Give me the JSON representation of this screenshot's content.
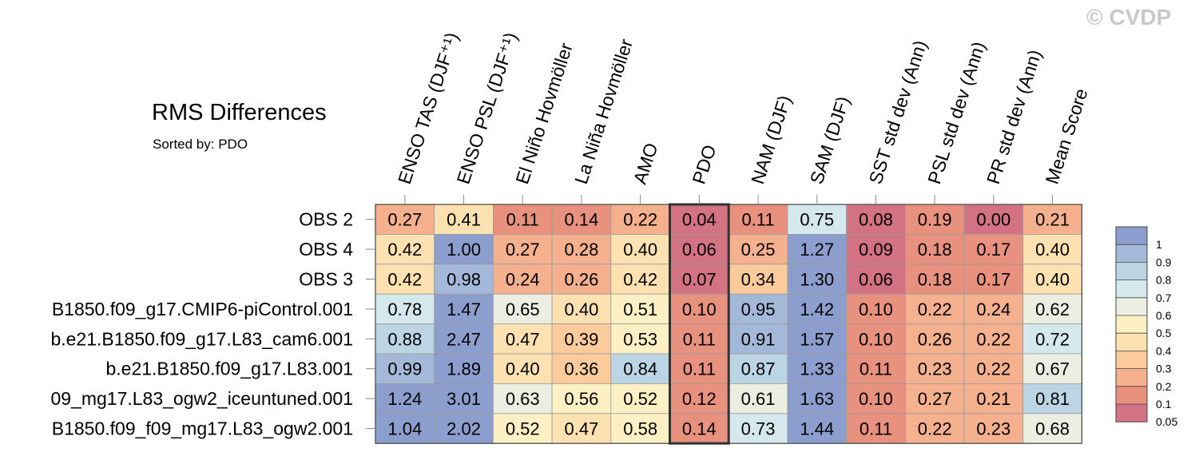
{
  "watermark": "© CVDP",
  "chart_data": {
    "type": "heatmap",
    "title": "RMS Differences",
    "subtitle": "Sorted by: PDO",
    "columns": [
      "ENSO TAS (DJF⁺¹)",
      "ENSO PSL (DJF⁺¹)",
      "El Niño Hovmöller",
      "La Niña Hovmöller",
      "AMO",
      "PDO",
      "NAM (DJF)",
      "SAM (DJF)",
      "SST std dev (Ann)",
      "PSL std dev (Ann)",
      "PR std dev (Ann)",
      "Mean Score"
    ],
    "rows": [
      "OBS 2",
      "OBS 4",
      "OBS 3",
      "B1850.f09_g17.CMIP6-piControl.001",
      "b.e21.B1850.f09_g17.L83_cam6.001",
      "b.e21.B1850.f09_g17.L83.001",
      "09_mg17.L83_ogw2_iceuntuned.001",
      "B1850.f09_f09_mg17.L83_ogw2.001"
    ],
    "values": [
      [
        0.27,
        0.41,
        0.11,
        0.14,
        0.22,
        0.04,
        0.11,
        0.75,
        0.08,
        0.19,
        0.0,
        0.21
      ],
      [
        0.42,
        1.0,
        0.27,
        0.28,
        0.4,
        0.06,
        0.25,
        1.27,
        0.09,
        0.18,
        0.17,
        0.4
      ],
      [
        0.42,
        0.98,
        0.24,
        0.26,
        0.42,
        0.07,
        0.34,
        1.3,
        0.06,
        0.18,
        0.17,
        0.4
      ],
      [
        0.78,
        1.47,
        0.65,
        0.4,
        0.51,
        0.1,
        0.95,
        1.42,
        0.1,
        0.22,
        0.24,
        0.62
      ],
      [
        0.88,
        2.47,
        0.47,
        0.39,
        0.53,
        0.11,
        0.91,
        1.57,
        0.1,
        0.26,
        0.22,
        0.72
      ],
      [
        0.99,
        1.89,
        0.4,
        0.36,
        0.84,
        0.11,
        0.87,
        1.33,
        0.11,
        0.23,
        0.22,
        0.67
      ],
      [
        1.24,
        3.01,
        0.63,
        0.56,
        0.52,
        0.12,
        0.61,
        1.63,
        0.1,
        0.27,
        0.21,
        0.81
      ],
      [
        1.04,
        2.02,
        0.52,
        0.47,
        0.58,
        0.14,
        0.73,
        1.44,
        0.11,
        0.22,
        0.23,
        0.68
      ]
    ],
    "highlight_column": "PDO",
    "colorbar": {
      "levels": [
        1,
        0.9,
        0.8,
        0.7,
        0.6,
        0.5,
        0.4,
        0.3,
        0.2,
        0.1,
        0.05
      ],
      "labels": [
        "1",
        "0.9",
        "0.8",
        "0.7",
        "0.6",
        "0.5",
        "0.4",
        "0.3",
        "0.2",
        "0.1",
        "0.05"
      ],
      "colors": [
        "#8b9ecd",
        "#a4b9da",
        "#bcd5e5",
        "#d4e8ee",
        "#eceee2",
        "#fdf0c4",
        "#fde1b1",
        "#fccb9c",
        "#f5b08e",
        "#e8917f",
        "#d27283"
      ]
    }
  }
}
